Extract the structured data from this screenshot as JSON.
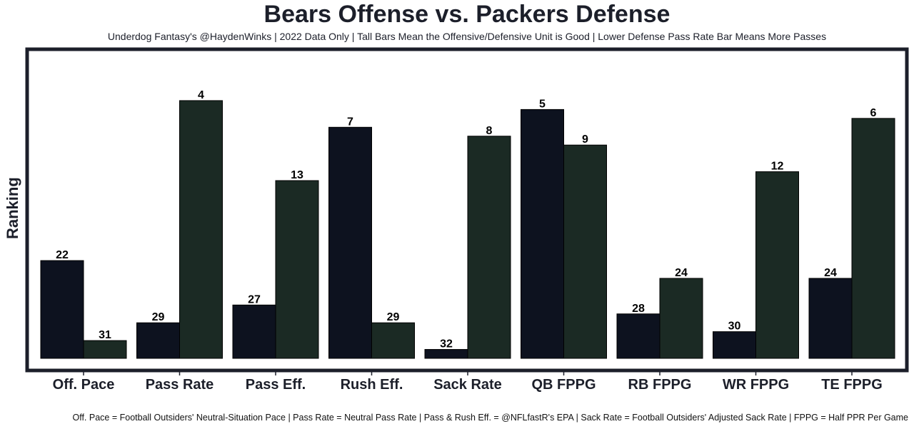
{
  "chart_data": {
    "type": "bar",
    "title": "Bears Offense vs. Packers Defense",
    "subtitle": "Underdog Fantasy's @HaydenWinks | 2022 Data Only | Tall Bars Mean the Offensive/Defensive Unit is Good | Lower Defense Pass Rate Bar Means More Passes",
    "xlabel": "",
    "ylabel": "Ranking",
    "footnote": "Off. Pace = Football Outsiders' Neutral-Situation Pace | Pass Rate = Neutral Pass Rate | Pass & Rush Eff. = @NFLfastR's EPA | Sack Rate = Football Outsiders' Adjusted Sack Rate | FPPG = Half PPR Per Game",
    "categories": [
      "Off. Pace",
      "Pass Rate",
      "Pass Eff.",
      "Rush Eff.",
      "Sack Rate",
      "QB FPPG",
      "RB FPPG",
      "WR FPPG",
      "TE FPPG"
    ],
    "series": [
      {
        "name": "Bears Offense",
        "color": "#0d121f",
        "values": [
          22,
          29,
          27,
          7,
          32,
          5,
          28,
          30,
          24
        ]
      },
      {
        "name": "Packers Defense",
        "color": "#1b2a24",
        "values": [
          31,
          4,
          13,
          29,
          8,
          9,
          24,
          12,
          6
        ]
      }
    ],
    "value_meaning": "rank (1 = best, 32 = worst); bar height inversely proportional to rank",
    "ylim": [
      32,
      1
    ],
    "grid": false,
    "legend": "none",
    "frame_color": "#1c1f2a"
  }
}
